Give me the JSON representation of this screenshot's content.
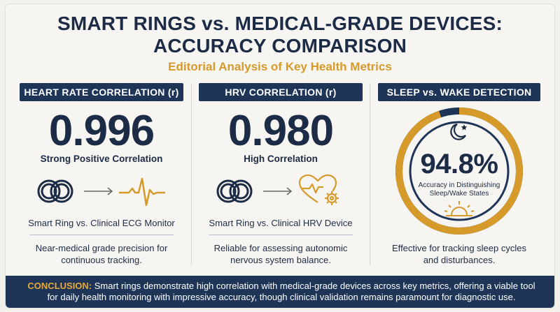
{
  "title_line1": "SMART RINGS vs. MEDICAL-GRADE DEVICES:",
  "title_line2": "ACCURACY COMPARISON",
  "subtitle": "Editorial Analysis of Key Health Metrics",
  "colors": {
    "navy": "#1f3558",
    "accent": "#d69a2a",
    "background": "#f3f1ec"
  },
  "panels": [
    {
      "header": "HEART RATE CORRELATION (r)",
      "value": "0.996",
      "description": "Strong Positive Correlation",
      "comparison": "Smart Ring vs. Clinical ECG Monitor",
      "note_line1": "Near-medical grade precision for",
      "note_line2": "continuous tracking.",
      "icons": [
        "rings-icon",
        "arrow-right-icon",
        "ecg-wave-icon"
      ]
    },
    {
      "header": "HRV CORRELATION (r)",
      "value": "0.980",
      "description": "High Correlation",
      "comparison": "Smart Ring vs. Clinical HRV Device",
      "note_line1": "Reliable for assessing autonomic",
      "note_line2": "nervous system balance.",
      "icons": [
        "rings-icon",
        "arrow-right-icon",
        "heart-gear-icon"
      ]
    },
    {
      "header": "SLEEP vs. WAKE DETECTION",
      "value": "94.8%",
      "gauge_fraction": 0.948,
      "caption_line1": "Accuracy in Distinguishing",
      "caption_line2": "Sleep/Wake States",
      "note_line1": "Effective for tracking sleep cycles",
      "note_line2": "and disturbances.",
      "icons": [
        "moon-star-icon",
        "sunrise-icon"
      ]
    }
  ],
  "footer": {
    "label": "CONCLUSION:",
    "text": " Smart rings demonstrate high correlation with medical-grade devices across key metrics, offering a viable tool for daily health monitoring with impressive accuracy, though clinical validation remains paramount for diagnostic use."
  }
}
